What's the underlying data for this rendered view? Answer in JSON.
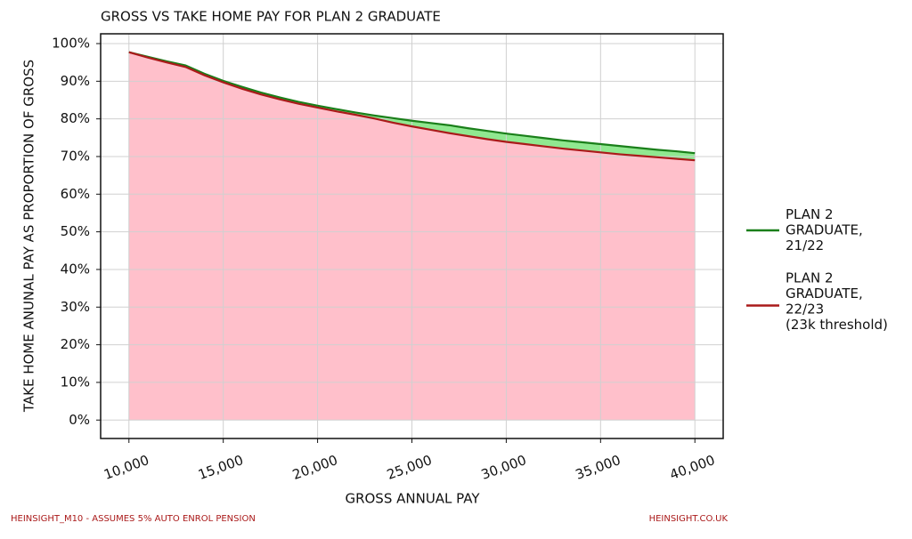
{
  "chart_data": {
    "type": "area-line",
    "title": "GROSS VS TAKE HOME PAY FOR PLAN 2 GRADUATE",
    "x_label": "GROSS ANNUAL PAY",
    "y_label": "TAKE HOME ANUNAL PAY AS PROPORTION OF GROSS",
    "footer_left": "HEINSIGHT_M10 - ASSUMES 5% AUTO ENROL PENSION",
    "footer_right": "HEINSIGHT.CO.UK",
    "x": [
      10000,
      11000,
      12000,
      13000,
      14000,
      15000,
      16000,
      17000,
      18000,
      19000,
      20000,
      21000,
      22000,
      23000,
      24000,
      25000,
      26000,
      27000,
      28000,
      29000,
      30000,
      31000,
      32000,
      33000,
      34000,
      35000,
      36000,
      37000,
      38000,
      39000,
      40000
    ],
    "series": [
      {
        "name": "PLAN 2\nGRADUATE,\n21/22",
        "color": "#1a7f1a",
        "fill": "#90e890",
        "values": [
          97.7,
          96.5,
          95.3,
          94.2,
          92.0,
          90.1,
          88.5,
          87.0,
          85.7,
          84.5,
          83.5,
          82.6,
          81.7,
          80.9,
          80.2,
          79.5,
          78.9,
          78.3,
          77.5,
          76.8,
          76.1,
          75.5,
          74.9,
          74.3,
          73.8,
          73.3,
          72.8,
          72.3,
          71.8,
          71.4,
          70.9
        ]
      },
      {
        "name": "PLAN 2\nGRADUATE,\n22/23\n(23k threshold)",
        "color": "#aa1a1a",
        "fill": "#ffc0cb",
        "values": [
          97.7,
          96.3,
          95.0,
          93.8,
          91.6,
          89.7,
          88.0,
          86.5,
          85.2,
          84.0,
          83.0,
          82.0,
          81.1,
          80.1,
          79.0,
          78.0,
          77.1,
          76.2,
          75.4,
          74.6,
          73.9,
          73.3,
          72.7,
          72.1,
          71.6,
          71.1,
          70.6,
          70.2,
          69.8,
          69.4,
          69.0
        ]
      }
    ],
    "xlim": [
      8500,
      41500
    ],
    "ylim": [
      -4.9,
      102.6
    ],
    "xticks": [
      {
        "value": 10000,
        "label": "10,000"
      },
      {
        "value": 15000,
        "label": "15,000"
      },
      {
        "value": 20000,
        "label": "20,000"
      },
      {
        "value": 25000,
        "label": "25,000"
      },
      {
        "value": 30000,
        "label": "30,000"
      },
      {
        "value": 35000,
        "label": "35,000"
      },
      {
        "value": 40000,
        "label": "40,000"
      }
    ],
    "yticks": [
      {
        "value": 0,
        "label": "0%"
      },
      {
        "value": 10,
        "label": "10%"
      },
      {
        "value": 20,
        "label": "20%"
      },
      {
        "value": 30,
        "label": "30%"
      },
      {
        "value": 40,
        "label": "40%"
      },
      {
        "value": 50,
        "label": "50%"
      },
      {
        "value": 60,
        "label": "60%"
      },
      {
        "value": 70,
        "label": "70%"
      },
      {
        "value": 80,
        "label": "80%"
      },
      {
        "value": 90,
        "label": "90%"
      },
      {
        "value": 100,
        "label": "100%"
      }
    ],
    "grid": true,
    "legend": "right"
  }
}
